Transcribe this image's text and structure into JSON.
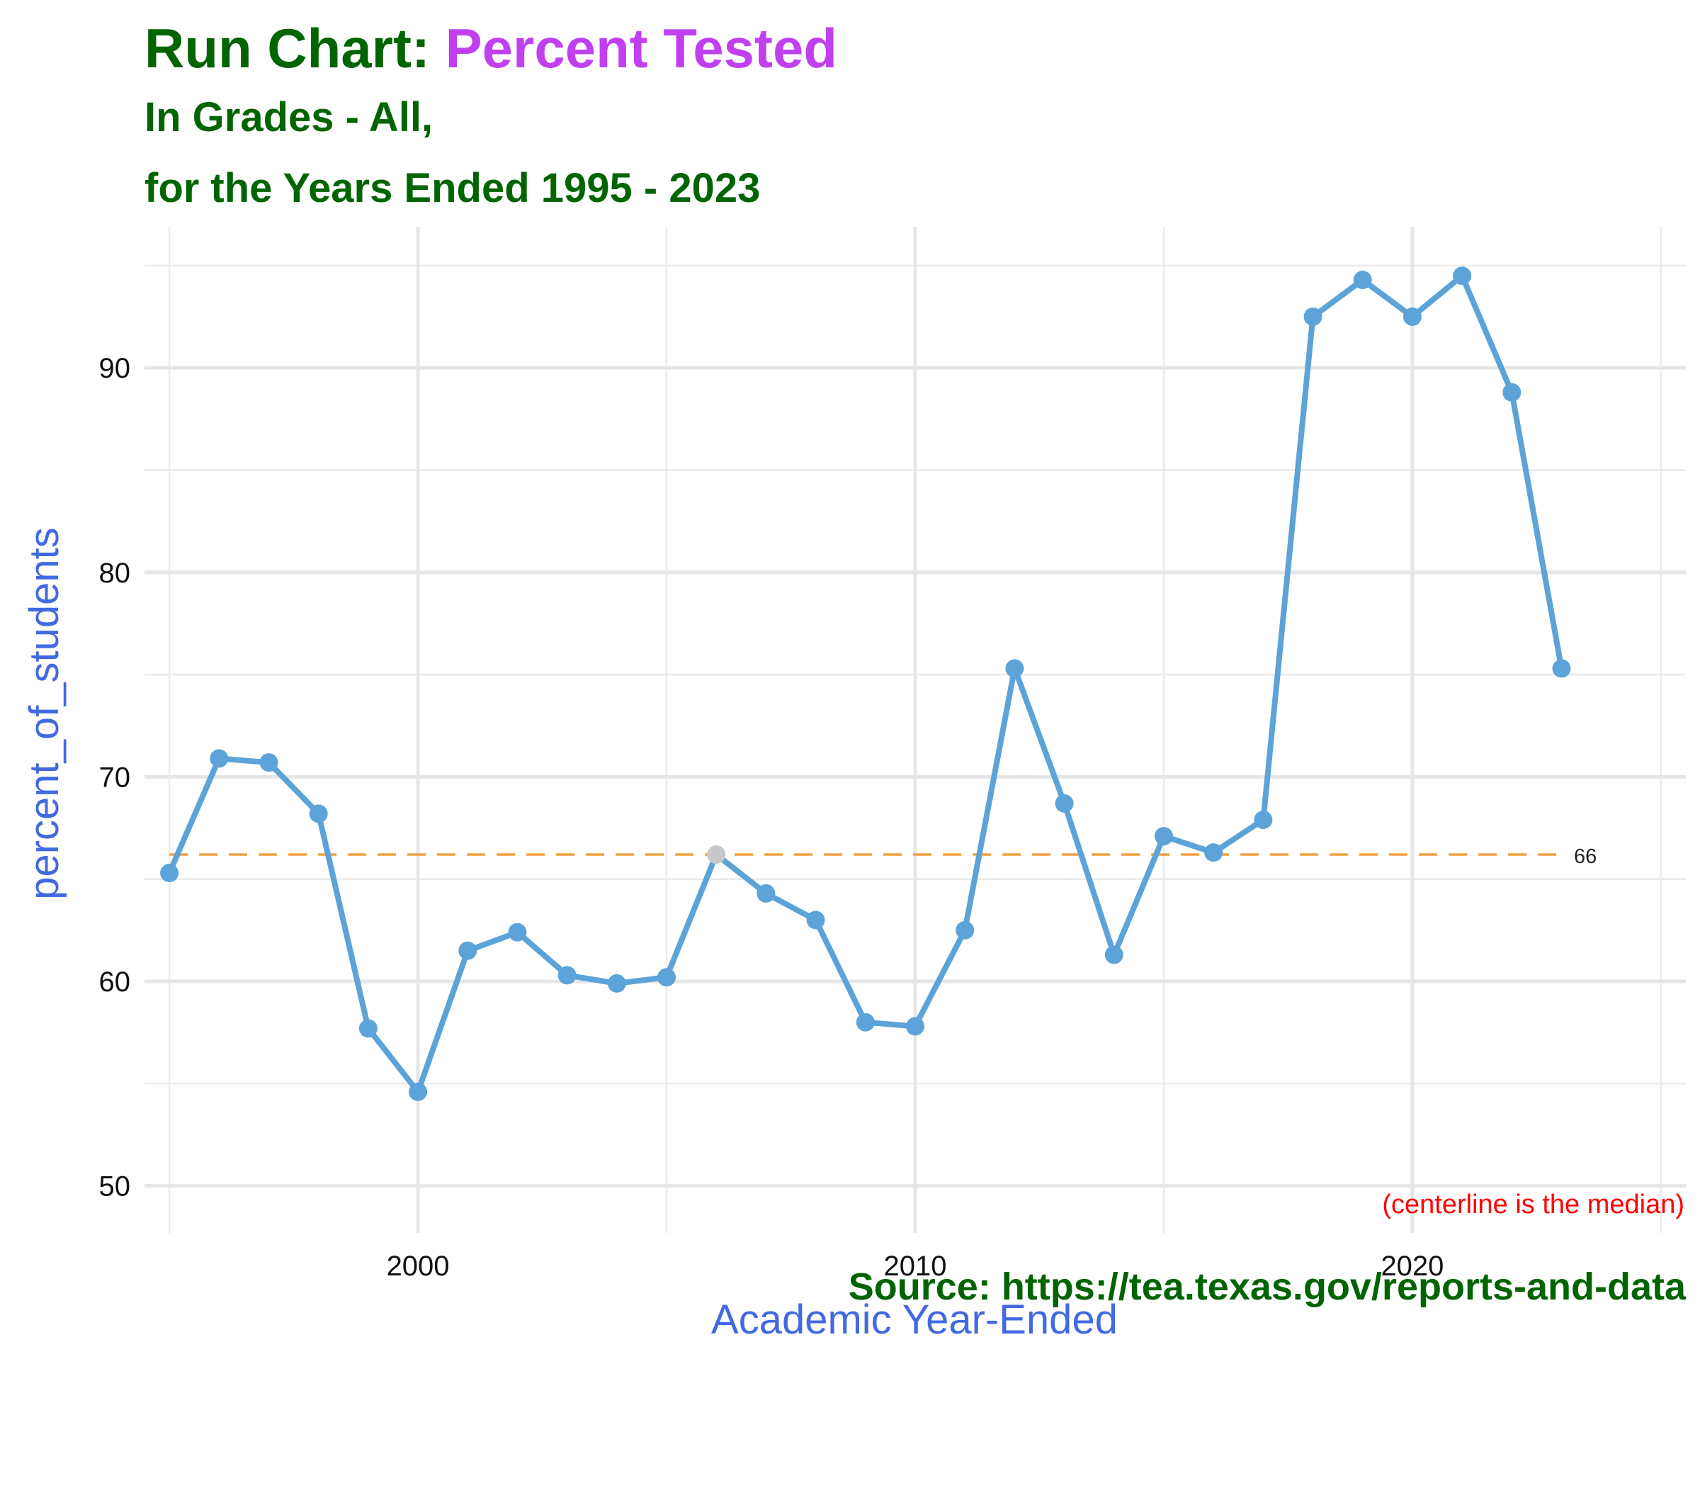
{
  "title": {
    "prefix": "Run Chart:",
    "highlight": "Percent Tested",
    "subtitle_line1": "In Grades - All,",
    "subtitle_line2": "for the Years Ended 1995 - 2023"
  },
  "caption": "Source:  https://tea.texas.gov/reports-and-data",
  "colors": {
    "title": "#006400",
    "highlight": "#c040f0",
    "axis_label": "#4169e1",
    "line": "#5ba3d8",
    "median_point": "#c8c8c8",
    "centerline": "#f4a040",
    "note": "#ff0000"
  },
  "chart_data": {
    "type": "line",
    "xlabel": "Academic Year-Ended",
    "ylabel": "percent_of_students",
    "xlim": [
      1994.5,
      2025.5
    ],
    "ylim": [
      47.7,
      96.9
    ],
    "x_ticks": [
      2000,
      2010,
      2020
    ],
    "y_ticks": [
      50,
      60,
      70,
      80,
      90
    ],
    "grid": true,
    "x": [
      1995,
      1996,
      1997,
      1998,
      1999,
      2000,
      2001,
      2002,
      2003,
      2004,
      2005,
      2006,
      2007,
      2008,
      2009,
      2010,
      2011,
      2012,
      2013,
      2014,
      2015,
      2016,
      2017,
      2018,
      2019,
      2020,
      2021,
      2022,
      2023
    ],
    "series": [
      {
        "values": [
          65.3,
          70.9,
          70.7,
          68.2,
          57.7,
          54.6,
          61.5,
          62.4,
          60.3,
          59.9,
          60.2,
          66.2,
          64.3,
          63.0,
          58.0,
          57.8,
          62.5,
          75.3,
          68.7,
          61.3,
          67.1,
          66.3,
          67.9,
          92.5,
          94.3,
          92.5,
          94.5,
          88.8,
          75.3
        ]
      }
    ],
    "centerline": {
      "value": 66.2,
      "label": "66",
      "x_start": 1995,
      "x_end": 2023
    },
    "highlighted_point_year": 2006,
    "note": "(centerline is the median)"
  }
}
